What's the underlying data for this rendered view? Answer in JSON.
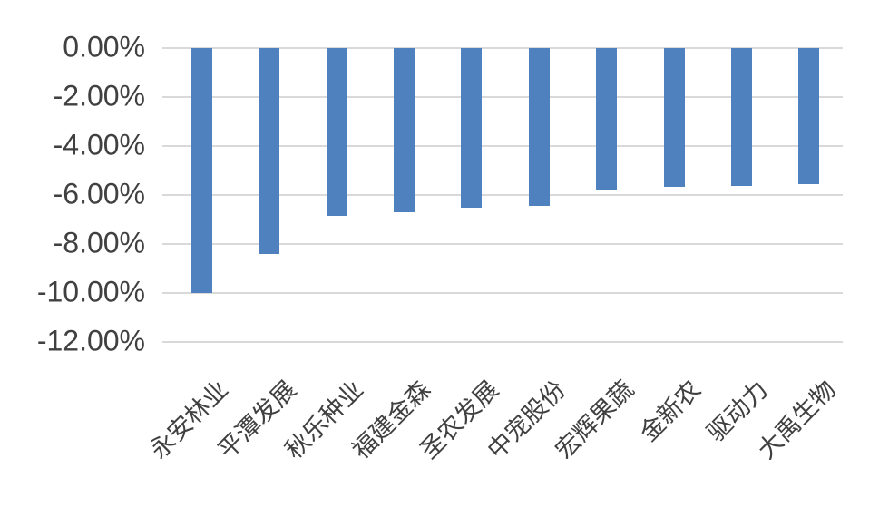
{
  "chart_data": {
    "type": "bar",
    "title": "",
    "xlabel": "",
    "ylabel": "",
    "categories": [
      "永安林业",
      "平潭发展",
      "秋乐种业",
      "福建金森",
      "圣农发展",
      "中宠股份",
      "宏辉果蔬",
      "金新农",
      "驱动力",
      "大禹生物"
    ],
    "values": [
      -10.0,
      -8.42,
      -6.87,
      -6.71,
      -6.52,
      -6.43,
      -5.78,
      -5.65,
      -5.63,
      -5.55
    ],
    "y_tick_labels": [
      "0.00%",
      "-2.00%",
      "-4.00%",
      "-6.00%",
      "-8.00%",
      "-10.00%",
      "-12.00%"
    ],
    "ylim": [
      -12,
      0
    ],
    "y_tick_step": 2,
    "grid": true,
    "legend": false,
    "colors": {
      "bar": "#4E81BD",
      "gridline": "#D9D9D9",
      "axis_text": "#404040",
      "background": "#FFFFFF"
    }
  }
}
